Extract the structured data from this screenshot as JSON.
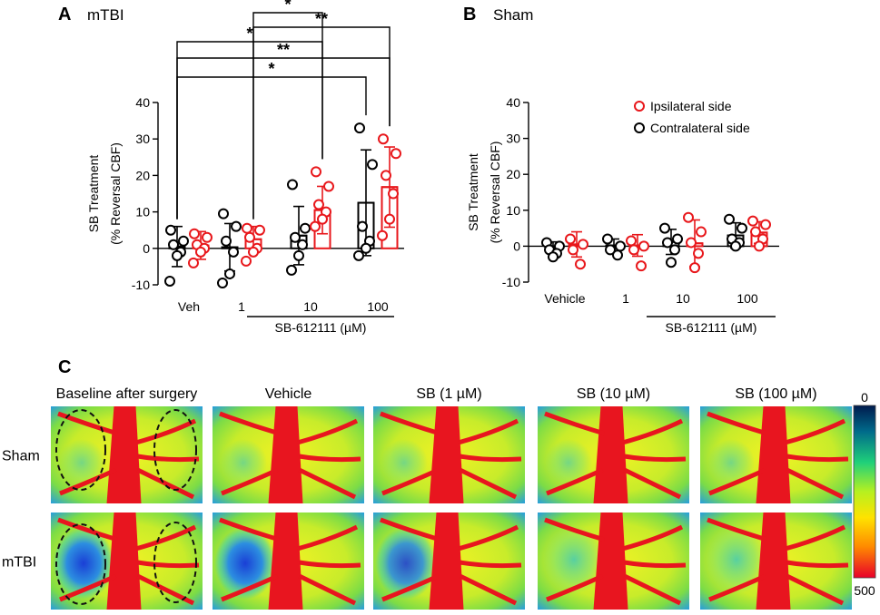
{
  "panels": {
    "a": {
      "letter": "A",
      "title": "mTBI"
    },
    "b": {
      "letter": "B",
      "title": "Sham"
    },
    "c": {
      "letter": "C"
    }
  },
  "colors": {
    "contralateral": "#000000",
    "ipsilateral": "#e8171b"
  },
  "chart_data": [
    {
      "type": "bar",
      "panel": "A",
      "title": "mTBI",
      "ylabel": "SB Treatment",
      "ylabel2": "(% Reversal CBF)",
      "xlabel": "SB-612111 (µM)",
      "ylim": [
        -10,
        40
      ],
      "yticks": [
        -10,
        0,
        10,
        20,
        30,
        40
      ],
      "categories": [
        "Veh",
        "1",
        "10",
        "100"
      ],
      "series": [
        {
          "name": "Contralateral side",
          "color": "#000000",
          "means": [
            0.5,
            0.3,
            3.5,
            12.5
          ],
          "sd": [
            5.5,
            6.5,
            8.0,
            14.5
          ],
          "points": [
            [
              5,
              2,
              1,
              -1,
              -2,
              -9
            ],
            [
              9.5,
              6,
              2,
              -1,
              -7,
              -9.5
            ],
            [
              17.5,
              5.5,
              3,
              1,
              -2,
              -6
            ],
            [
              33,
              23,
              6,
              2,
              0,
              -2
            ]
          ]
        },
        {
          "name": "Ipsilateral side",
          "color": "#e8171b",
          "means": [
            0.8,
            2.5,
            10.5,
            16.8
          ],
          "sd": [
            3.8,
            3.5,
            6.5,
            11
          ],
          "points": [
            [
              4,
              3,
              1,
              0,
              -1,
              -4
            ],
            [
              5.5,
              5,
              3,
              0,
              -1,
              -3.5
            ],
            [
              21,
              17,
              12,
              10,
              8,
              6
            ],
            [
              30,
              26,
              20,
              15,
              8,
              3.5
            ]
          ]
        }
      ],
      "significance": [
        {
          "from": "Veh",
          "to": "100",
          "series_to": "Contralateral side",
          "label": "*"
        },
        {
          "from": "Veh",
          "to": "100",
          "series_to": "Ipsilateral side",
          "label": "**"
        },
        {
          "from": "Veh",
          "to": "10",
          "series_to": "Ipsilateral side",
          "label": "*"
        },
        {
          "from": "1",
          "to": "100",
          "series_to": "Ipsilateral side",
          "label": "**"
        },
        {
          "from": "1",
          "to": "10",
          "series_to": "Ipsilateral side",
          "label": "*"
        }
      ]
    },
    {
      "type": "bar",
      "panel": "B",
      "title": "Sham",
      "ylabel": "SB Treatment",
      "ylabel2": "(% Reversal CBF)",
      "xlabel": "SB-612111 (µM)",
      "ylim": [
        -10,
        40
      ],
      "yticks": [
        -10,
        0,
        10,
        20,
        30,
        40
      ],
      "categories": [
        "Vehicle",
        "1",
        "10",
        "100"
      ],
      "legend": {
        "position": "top-right",
        "entries": [
          "Ipsilateral side",
          "Contralateral side"
        ]
      },
      "series": [
        {
          "name": "Contralateral side",
          "color": "#000000",
          "means": [
            -0.3,
            0.2,
            1.2,
            3.0
          ],
          "sd": [
            1.5,
            1.8,
            3.5,
            3.5
          ],
          "points": [
            [
              1,
              0,
              -1,
              -2,
              -3
            ],
            [
              2,
              0,
              -1,
              -2.5
            ],
            [
              5,
              2,
              1,
              -1,
              -4.5
            ],
            [
              7.5,
              5,
              2,
              1,
              0
            ]
          ]
        },
        {
          "name": "Ipsilateral side",
          "color": "#e8171b",
          "means": [
            0.5,
            0.2,
            0.8,
            3.8
          ],
          "sd": [
            3.5,
            3.0,
            6.5,
            3.0
          ],
          "points": [
            [
              2,
              0.5,
              -1,
              -5
            ],
            [
              1.5,
              0,
              -1,
              -5.5
            ],
            [
              8,
              4,
              1,
              -2,
              -6
            ],
            [
              7,
              6,
              4,
              2,
              0
            ]
          ]
        }
      ]
    }
  ],
  "panel_c": {
    "column_titles": [
      "Baseline after surgery",
      "Vehicle",
      "SB (1 µM)",
      "SB (10 µM)",
      "SB (100 µM)"
    ],
    "row_labels": [
      "Sham",
      "mTBI"
    ],
    "colorbar": {
      "min_label": "0",
      "max_label": "500",
      "top_color": "#001a4d",
      "bottom_color": "#e8002a"
    }
  }
}
